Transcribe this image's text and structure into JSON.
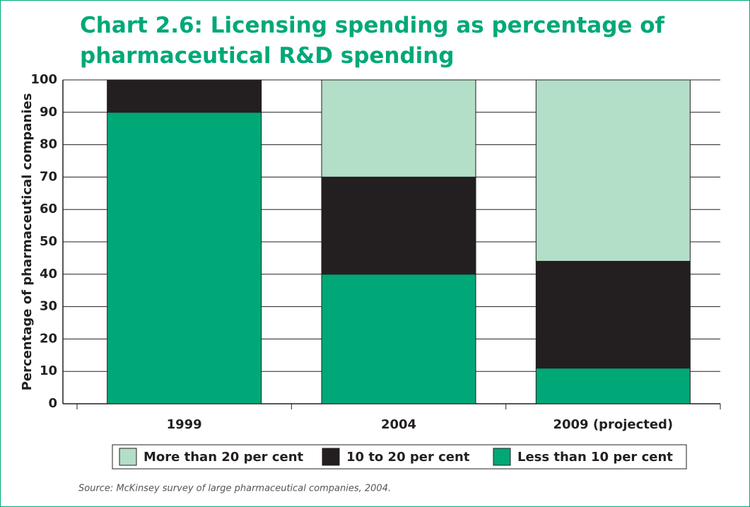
{
  "chart_data": {
    "type": "stacked_bar",
    "title": "Chart 2.6: Licensing spending as percentage of pharmaceutical R&D spending",
    "ylabel": "Percentage of pharmaceutical companies",
    "categories": [
      "1999",
      "2004",
      "2009 (projected)"
    ],
    "series": [
      {
        "name": "More than 20 per cent",
        "color": "#b3dec8",
        "values": [
          0,
          30,
          56
        ]
      },
      {
        "name": "10 to 20 per cent",
        "color": "#231f20",
        "values": [
          10,
          30,
          33
        ]
      },
      {
        "name": "Less than 10 per cent",
        "color": "#00a878",
        "values": [
          90,
          40,
          11
        ]
      }
    ],
    "ylim": [
      0,
      100
    ],
    "yticks": [
      0,
      10,
      20,
      30,
      40,
      50,
      60,
      70,
      80,
      90,
      100
    ],
    "grid": true,
    "source": "Source: McKinsey survey of large pharmaceutical companies, 2004."
  }
}
